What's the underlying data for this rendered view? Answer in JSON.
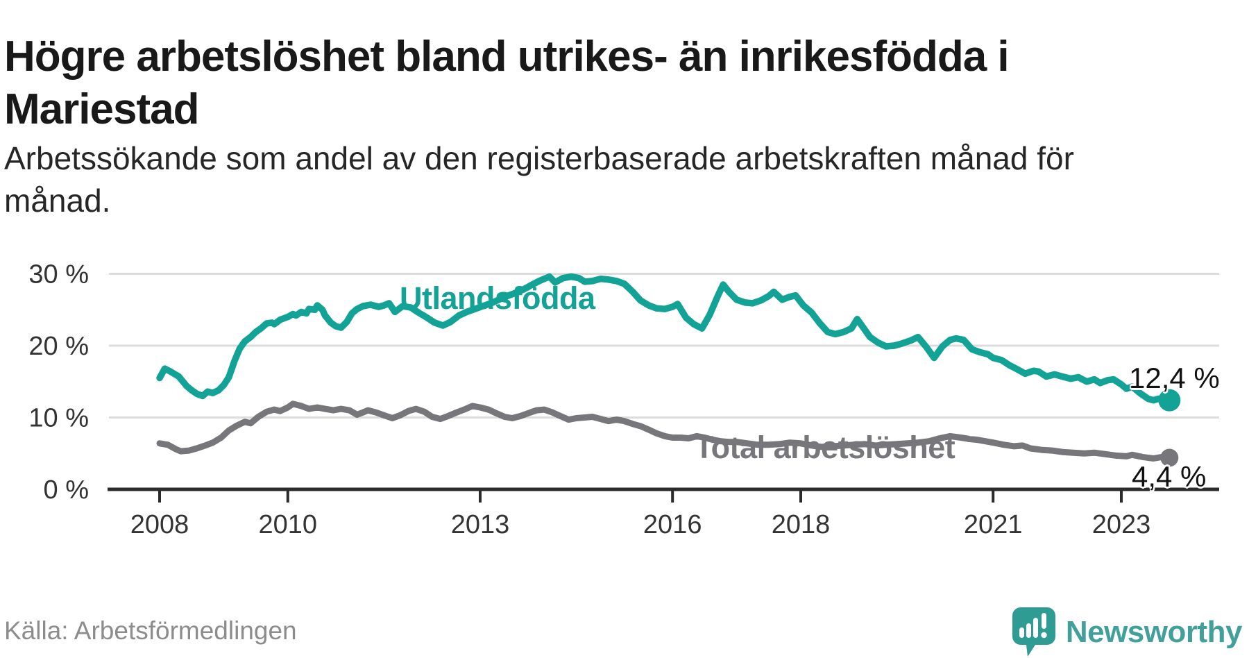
{
  "title": {
    "line1": "Högre arbetslöshet bland utrikes- än inrikesfödda i",
    "line2": "Mariestad"
  },
  "subtitle": {
    "line1": "Arbetssökande som andel av den registerbaserade arbetskraften månad för",
    "line2": "månad."
  },
  "source": "Källa: Arbetsförmedlingen",
  "brand": {
    "name": "Newsworthy",
    "icon": "speech-bubble-bar-chart-icon",
    "color": "#42a09a",
    "icon_color": "#2f9c93"
  },
  "colors": {
    "foreign_born": "#12a296",
    "total": "#76767b",
    "gridline": "#dcdcdc",
    "axis": "#2b2b2b",
    "tick_text": "#333333"
  },
  "chart_data": {
    "type": "line",
    "title": "Högre arbetslöshet bland utrikes- än inrikesfödda i Mariestad",
    "xlabel": "",
    "ylabel": "Arbetssökande som andel av den registerbaserade arbetskraften",
    "ylim": [
      0,
      32
    ],
    "x_range": [
      2008,
      2023.75
    ],
    "grid": "horizontal",
    "legend_position": "inline-labels",
    "y_ticks": [
      {
        "label": "0 %",
        "value": 0
      },
      {
        "label": "10 %",
        "value": 10
      },
      {
        "label": "20 %",
        "value": 20
      },
      {
        "label": "30 %",
        "value": 30
      }
    ],
    "x_ticks": [
      {
        "label": "2008",
        "year": 2008
      },
      {
        "label": "2010",
        "year": 2010
      },
      {
        "label": "2013",
        "year": 2013
      },
      {
        "label": "2016",
        "year": 2016
      },
      {
        "label": "2018",
        "year": 2018
      },
      {
        "label": "2021",
        "year": 2021
      },
      {
        "label": "2023",
        "year": 2023
      }
    ],
    "series": [
      {
        "name": "Utlandsfödda",
        "color": "#12a296",
        "end_label": "12,4 %",
        "end_value": 12.4,
        "points": [
          [
            2008.0,
            15.5
          ],
          [
            2008.08,
            16.8
          ],
          [
            2008.17,
            16.4
          ],
          [
            2008.3,
            15.7
          ],
          [
            2008.42,
            14.4
          ],
          [
            2008.5,
            13.8
          ],
          [
            2008.58,
            13.3
          ],
          [
            2008.67,
            13.0
          ],
          [
            2008.75,
            13.6
          ],
          [
            2008.83,
            13.4
          ],
          [
            2008.92,
            13.8
          ],
          [
            2009.0,
            14.5
          ],
          [
            2009.08,
            15.6
          ],
          [
            2009.17,
            17.9
          ],
          [
            2009.25,
            19.6
          ],
          [
            2009.33,
            20.6
          ],
          [
            2009.42,
            21.2
          ],
          [
            2009.5,
            21.9
          ],
          [
            2009.58,
            22.4
          ],
          [
            2009.67,
            23.1
          ],
          [
            2009.75,
            23.2
          ],
          [
            2009.79,
            23.0
          ],
          [
            2009.88,
            23.6
          ],
          [
            2010.0,
            24.0
          ],
          [
            2010.08,
            24.4
          ],
          [
            2010.13,
            24.2
          ],
          [
            2010.21,
            24.7
          ],
          [
            2010.29,
            24.5
          ],
          [
            2010.33,
            25.1
          ],
          [
            2010.42,
            25.0
          ],
          [
            2010.46,
            25.6
          ],
          [
            2010.54,
            25.0
          ],
          [
            2010.58,
            24.2
          ],
          [
            2010.67,
            23.2
          ],
          [
            2010.75,
            22.7
          ],
          [
            2010.83,
            22.5
          ],
          [
            2010.92,
            23.3
          ],
          [
            2011.0,
            24.5
          ],
          [
            2011.08,
            25.1
          ],
          [
            2011.17,
            25.5
          ],
          [
            2011.29,
            25.7
          ],
          [
            2011.42,
            25.4
          ],
          [
            2011.5,
            25.6
          ],
          [
            2011.58,
            25.9
          ],
          [
            2011.67,
            24.7
          ],
          [
            2011.79,
            25.5
          ],
          [
            2011.92,
            25.3
          ],
          [
            2012.04,
            24.6
          ],
          [
            2012.17,
            23.9
          ],
          [
            2012.29,
            23.2
          ],
          [
            2012.42,
            22.8
          ],
          [
            2012.54,
            23.3
          ],
          [
            2012.67,
            24.2
          ],
          [
            2012.79,
            24.7
          ],
          [
            2012.92,
            25.1
          ],
          [
            2013.04,
            25.5
          ],
          [
            2013.17,
            25.9
          ],
          [
            2013.29,
            26.4
          ],
          [
            2013.42,
            26.9
          ],
          [
            2013.54,
            27.3
          ],
          [
            2013.67,
            27.8
          ],
          [
            2013.79,
            28.4
          ],
          [
            2013.92,
            29.0
          ],
          [
            2014.0,
            29.3
          ],
          [
            2014.08,
            29.6
          ],
          [
            2014.17,
            28.8
          ],
          [
            2014.29,
            29.4
          ],
          [
            2014.42,
            29.6
          ],
          [
            2014.54,
            29.4
          ],
          [
            2014.63,
            28.9
          ],
          [
            2014.75,
            29.0
          ],
          [
            2014.88,
            29.3
          ],
          [
            2015.0,
            29.2
          ],
          [
            2015.13,
            29.0
          ],
          [
            2015.25,
            28.6
          ],
          [
            2015.38,
            27.5
          ],
          [
            2015.5,
            26.3
          ],
          [
            2015.63,
            25.6
          ],
          [
            2015.75,
            25.2
          ],
          [
            2015.88,
            25.1
          ],
          [
            2016.0,
            25.4
          ],
          [
            2016.08,
            25.8
          ],
          [
            2016.21,
            23.9
          ],
          [
            2016.33,
            23.0
          ],
          [
            2016.46,
            22.4
          ],
          [
            2016.58,
            24.3
          ],
          [
            2016.71,
            27.0
          ],
          [
            2016.79,
            28.5
          ],
          [
            2016.88,
            27.5
          ],
          [
            2017.0,
            26.4
          ],
          [
            2017.13,
            26.0
          ],
          [
            2017.25,
            25.9
          ],
          [
            2017.38,
            26.3
          ],
          [
            2017.5,
            26.9
          ],
          [
            2017.58,
            27.5
          ],
          [
            2017.71,
            26.4
          ],
          [
            2017.83,
            26.8
          ],
          [
            2017.92,
            27.0
          ],
          [
            2018.04,
            25.6
          ],
          [
            2018.17,
            24.6
          ],
          [
            2018.29,
            23.2
          ],
          [
            2018.42,
            21.9
          ],
          [
            2018.54,
            21.6
          ],
          [
            2018.67,
            21.9
          ],
          [
            2018.79,
            22.4
          ],
          [
            2018.88,
            23.7
          ],
          [
            2019.0,
            22.2
          ],
          [
            2019.08,
            21.2
          ],
          [
            2019.21,
            20.4
          ],
          [
            2019.33,
            19.9
          ],
          [
            2019.46,
            20.0
          ],
          [
            2019.58,
            20.3
          ],
          [
            2019.71,
            20.7
          ],
          [
            2019.83,
            21.2
          ],
          [
            2019.96,
            19.8
          ],
          [
            2020.08,
            18.3
          ],
          [
            2020.21,
            19.9
          ],
          [
            2020.33,
            20.8
          ],
          [
            2020.42,
            21.0
          ],
          [
            2020.54,
            20.8
          ],
          [
            2020.67,
            19.5
          ],
          [
            2020.79,
            19.1
          ],
          [
            2020.92,
            18.8
          ],
          [
            2021.0,
            18.3
          ],
          [
            2021.13,
            18.0
          ],
          [
            2021.25,
            17.3
          ],
          [
            2021.38,
            16.7
          ],
          [
            2021.5,
            16.1
          ],
          [
            2021.63,
            16.5
          ],
          [
            2021.71,
            16.4
          ],
          [
            2021.83,
            15.7
          ],
          [
            2021.96,
            16.0
          ],
          [
            2022.08,
            15.7
          ],
          [
            2022.21,
            15.4
          ],
          [
            2022.33,
            15.6
          ],
          [
            2022.46,
            15.0
          ],
          [
            2022.58,
            15.3
          ],
          [
            2022.67,
            14.8
          ],
          [
            2022.79,
            15.2
          ],
          [
            2022.88,
            15.3
          ],
          [
            2023.0,
            14.6
          ],
          [
            2023.08,
            14.0
          ],
          [
            2023.17,
            14.3
          ],
          [
            2023.29,
            13.4
          ],
          [
            2023.42,
            12.6
          ],
          [
            2023.5,
            12.4
          ],
          [
            2023.58,
            12.6
          ],
          [
            2023.67,
            12.7
          ],
          [
            2023.75,
            12.4
          ]
        ]
      },
      {
        "name": "Total arbetslöshet",
        "color": "#76767b",
        "end_label": "4,4 %",
        "end_value": 4.4,
        "points": [
          [
            2008.0,
            6.4
          ],
          [
            2008.13,
            6.2
          ],
          [
            2008.25,
            5.6
          ],
          [
            2008.33,
            5.3
          ],
          [
            2008.46,
            5.4
          ],
          [
            2008.58,
            5.7
          ],
          [
            2008.71,
            6.1
          ],
          [
            2008.83,
            6.5
          ],
          [
            2008.96,
            7.2
          ],
          [
            2009.08,
            8.2
          ],
          [
            2009.21,
            8.9
          ],
          [
            2009.33,
            9.4
          ],
          [
            2009.42,
            9.2
          ],
          [
            2009.54,
            10.1
          ],
          [
            2009.67,
            10.8
          ],
          [
            2009.79,
            11.1
          ],
          [
            2009.88,
            10.9
          ],
          [
            2010.0,
            11.4
          ],
          [
            2010.08,
            11.9
          ],
          [
            2010.21,
            11.6
          ],
          [
            2010.33,
            11.2
          ],
          [
            2010.46,
            11.4
          ],
          [
            2010.58,
            11.2
          ],
          [
            2010.71,
            11.0
          ],
          [
            2010.83,
            11.2
          ],
          [
            2010.96,
            11.0
          ],
          [
            2011.08,
            10.4
          ],
          [
            2011.17,
            10.7
          ],
          [
            2011.25,
            11.0
          ],
          [
            2011.38,
            10.7
          ],
          [
            2011.5,
            10.3
          ],
          [
            2011.63,
            9.9
          ],
          [
            2011.75,
            10.3
          ],
          [
            2011.88,
            10.9
          ],
          [
            2012.0,
            11.2
          ],
          [
            2012.13,
            10.8
          ],
          [
            2012.25,
            10.1
          ],
          [
            2012.38,
            9.8
          ],
          [
            2012.5,
            10.2
          ],
          [
            2012.63,
            10.7
          ],
          [
            2012.75,
            11.1
          ],
          [
            2012.88,
            11.6
          ],
          [
            2013.0,
            11.4
          ],
          [
            2013.13,
            11.1
          ],
          [
            2013.25,
            10.6
          ],
          [
            2013.38,
            10.1
          ],
          [
            2013.5,
            9.9
          ],
          [
            2013.63,
            10.2
          ],
          [
            2013.75,
            10.6
          ],
          [
            2013.88,
            11.0
          ],
          [
            2014.0,
            11.1
          ],
          [
            2014.13,
            10.7
          ],
          [
            2014.25,
            10.2
          ],
          [
            2014.38,
            9.7
          ],
          [
            2014.5,
            9.9
          ],
          [
            2014.63,
            10.0
          ],
          [
            2014.75,
            10.1
          ],
          [
            2014.88,
            9.8
          ],
          [
            2015.0,
            9.5
          ],
          [
            2015.13,
            9.7
          ],
          [
            2015.25,
            9.5
          ],
          [
            2015.38,
            9.1
          ],
          [
            2015.5,
            8.8
          ],
          [
            2015.63,
            8.3
          ],
          [
            2015.75,
            7.8
          ],
          [
            2015.88,
            7.4
          ],
          [
            2016.0,
            7.2
          ],
          [
            2016.13,
            7.2
          ],
          [
            2016.25,
            7.1
          ],
          [
            2016.38,
            7.4
          ],
          [
            2016.5,
            7.2
          ],
          [
            2016.63,
            6.9
          ],
          [
            2016.75,
            6.7
          ],
          [
            2016.88,
            6.6
          ],
          [
            2017.0,
            6.6
          ],
          [
            2017.17,
            6.4
          ],
          [
            2017.33,
            6.2
          ],
          [
            2017.5,
            6.2
          ],
          [
            2017.67,
            6.3
          ],
          [
            2017.83,
            6.5
          ],
          [
            2018.0,
            6.4
          ],
          [
            2018.17,
            6.1
          ],
          [
            2018.33,
            5.9
          ],
          [
            2018.5,
            6.0
          ],
          [
            2018.67,
            6.1
          ],
          [
            2018.83,
            6.2
          ],
          [
            2019.0,
            6.3
          ],
          [
            2019.17,
            6.1
          ],
          [
            2019.33,
            6.2
          ],
          [
            2019.5,
            6.3
          ],
          [
            2019.67,
            6.4
          ],
          [
            2019.83,
            6.5
          ],
          [
            2020.0,
            6.7
          ],
          [
            2020.17,
            7.1
          ],
          [
            2020.33,
            7.4
          ],
          [
            2020.5,
            7.2
          ],
          [
            2020.63,
            7.0
          ],
          [
            2020.75,
            6.9
          ],
          [
            2020.88,
            6.7
          ],
          [
            2021.0,
            6.5
          ],
          [
            2021.17,
            6.2
          ],
          [
            2021.33,
            6.0
          ],
          [
            2021.46,
            6.1
          ],
          [
            2021.58,
            5.7
          ],
          [
            2021.75,
            5.5
          ],
          [
            2021.92,
            5.4
          ],
          [
            2022.08,
            5.2
          ],
          [
            2022.25,
            5.1
          ],
          [
            2022.42,
            5.0
          ],
          [
            2022.58,
            5.1
          ],
          [
            2022.75,
            4.9
          ],
          [
            2022.92,
            4.7
          ],
          [
            2023.08,
            4.6
          ],
          [
            2023.17,
            4.8
          ],
          [
            2023.33,
            4.5
          ],
          [
            2023.5,
            4.3
          ],
          [
            2023.63,
            4.5
          ],
          [
            2023.75,
            4.4
          ]
        ]
      }
    ]
  }
}
